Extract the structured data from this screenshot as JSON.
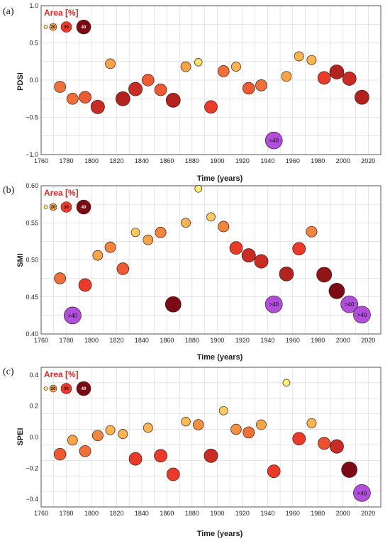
{
  "chart_data": [
    {
      "type": "scatter",
      "panel_label": "(a)",
      "xlabel": "Time (years)",
      "ylabel": "PDSI",
      "xlim": [
        1760,
        2030
      ],
      "ylim": [
        -1.0,
        1.0
      ],
      "xticks": [
        1760,
        1780,
        1800,
        1820,
        1840,
        1860,
        1880,
        1900,
        1920,
        1940,
        1960,
        1980,
        2000,
        2020
      ],
      "yticks": [
        -1.0,
        -0.5,
        0.0,
        0.5,
        1.0
      ],
      "ytick_labels": [
        "−1.0",
        "−0.5",
        "0.0",
        "0.5",
        "1.0"
      ],
      "grid": true,
      "legend": {
        "title": "Area [%]",
        "position": "top-left",
        "labels": [
          "10",
          "20",
          "30",
          "40"
        ]
      },
      "points": [
        {
          "x": 1775,
          "y": -0.09,
          "area": 25
        },
        {
          "x": 1785,
          "y": -0.25,
          "area": 25
        },
        {
          "x": 1795,
          "y": -0.23,
          "area": 27
        },
        {
          "x": 1805,
          "y": -0.36,
          "area": 33
        },
        {
          "x": 1815,
          "y": 0.22,
          "area": 20
        },
        {
          "x": 1825,
          "y": -0.25,
          "area": 35
        },
        {
          "x": 1835,
          "y": -0.12,
          "area": 33
        },
        {
          "x": 1845,
          "y": 0.0,
          "area": 27
        },
        {
          "x": 1855,
          "y": -0.13,
          "area": 27
        },
        {
          "x": 1865,
          "y": -0.27,
          "area": 35
        },
        {
          "x": 1875,
          "y": 0.18,
          "area": 20
        },
        {
          "x": 1885,
          "y": 0.24,
          "area": 12
        },
        {
          "x": 1895,
          "y": -0.36,
          "area": 30
        },
        {
          "x": 1905,
          "y": 0.12,
          "area": 25
        },
        {
          "x": 1915,
          "y": 0.18,
          "area": 18
        },
        {
          "x": 1925,
          "y": -0.11,
          "area": 27
        },
        {
          "x": 1935,
          "y": -0.07,
          "area": 25
        },
        {
          "x": 1945,
          "y": -0.81,
          "area": 50,
          "label": ">40"
        },
        {
          "x": 1955,
          "y": 0.05,
          "area": 20
        },
        {
          "x": 1965,
          "y": 0.32,
          "area": 18
        },
        {
          "x": 1975,
          "y": 0.27,
          "area": 18
        },
        {
          "x": 1985,
          "y": 0.03,
          "area": 30
        },
        {
          "x": 1995,
          "y": 0.11,
          "area": 35
        },
        {
          "x": 2005,
          "y": 0.02,
          "area": 33
        },
        {
          "x": 2015,
          "y": -0.23,
          "area": 35
        }
      ]
    },
    {
      "type": "scatter",
      "panel_label": "(b)",
      "xlabel": "Time (years)",
      "ylabel": "SMI",
      "xlim": [
        1760,
        2030
      ],
      "ylim": [
        0.4,
        0.6
      ],
      "xticks": [
        1760,
        1780,
        1800,
        1820,
        1840,
        1860,
        1880,
        1900,
        1920,
        1940,
        1960,
        1980,
        2000,
        2020
      ],
      "yticks": [
        0.4,
        0.45,
        0.5,
        0.55,
        0.6
      ],
      "ytick_labels": [
        "0.40",
        "0.45",
        "0.50",
        "0.55",
        "0.60"
      ],
      "grid": true,
      "legend": {
        "title": "Area [%]",
        "position": "top-left",
        "labels": [
          "10",
          "20",
          "30",
          "40"
        ]
      },
      "points": [
        {
          "x": 1775,
          "y": 0.475,
          "area": 25
        },
        {
          "x": 1785,
          "y": 0.425,
          "area": 50,
          "label": ">40"
        },
        {
          "x": 1795,
          "y": 0.466,
          "area": 30
        },
        {
          "x": 1805,
          "y": 0.506,
          "area": 20
        },
        {
          "x": 1815,
          "y": 0.517,
          "area": 23
        },
        {
          "x": 1825,
          "y": 0.488,
          "area": 27
        },
        {
          "x": 1835,
          "y": 0.537,
          "area": 15
        },
        {
          "x": 1845,
          "y": 0.527,
          "area": 20
        },
        {
          "x": 1855,
          "y": 0.537,
          "area": 23
        },
        {
          "x": 1865,
          "y": 0.44,
          "area": 40
        },
        {
          "x": 1875,
          "y": 0.55,
          "area": 18
        },
        {
          "x": 1885,
          "y": 0.596,
          "area": 10
        },
        {
          "x": 1895,
          "y": 0.558,
          "area": 15
        },
        {
          "x": 1905,
          "y": 0.545,
          "area": 23
        },
        {
          "x": 1915,
          "y": 0.516,
          "area": 30
        },
        {
          "x": 1925,
          "y": 0.506,
          "area": 33
        },
        {
          "x": 1935,
          "y": 0.498,
          "area": 33
        },
        {
          "x": 1945,
          "y": 0.44,
          "area": 50,
          "label": ">40"
        },
        {
          "x": 1955,
          "y": 0.481,
          "area": 35
        },
        {
          "x": 1965,
          "y": 0.515,
          "area": 30
        },
        {
          "x": 1975,
          "y": 0.538,
          "area": 23
        },
        {
          "x": 1985,
          "y": 0.48,
          "area": 38
        },
        {
          "x": 1995,
          "y": 0.458,
          "area": 40
        },
        {
          "x": 2005,
          "y": 0.44,
          "area": 50,
          "label": ">40"
        },
        {
          "x": 2015,
          "y": 0.426,
          "area": 50,
          "label": ">40"
        }
      ]
    },
    {
      "type": "scatter",
      "panel_label": "(c)",
      "xlabel": "Time (years)",
      "ylabel": "SPEI",
      "xlim": [
        1760,
        2030
      ],
      "ylim": [
        -0.45,
        0.45
      ],
      "xticks": [
        1760,
        1780,
        1800,
        1820,
        1840,
        1860,
        1880,
        1900,
        1920,
        1940,
        1960,
        1980,
        2000,
        2020
      ],
      "yticks": [
        -0.4,
        -0.2,
        0.0,
        0.2,
        0.4
      ],
      "ytick_labels": [
        "−0.4",
        "−0.2",
        "0.0",
        "0.2",
        "0.4"
      ],
      "grid": true,
      "legend": {
        "title": "Area [%]",
        "position": "top-left",
        "labels": [
          "10",
          "20",
          "30",
          "40"
        ]
      },
      "points": [
        {
          "x": 1775,
          "y": -0.11,
          "area": 27
        },
        {
          "x": 1785,
          "y": -0.02,
          "area": 20
        },
        {
          "x": 1795,
          "y": -0.09,
          "area": 25
        },
        {
          "x": 1805,
          "y": 0.01,
          "area": 23
        },
        {
          "x": 1815,
          "y": 0.045,
          "area": 18
        },
        {
          "x": 1825,
          "y": 0.02,
          "area": 18
        },
        {
          "x": 1835,
          "y": -0.14,
          "area": 30
        },
        {
          "x": 1845,
          "y": 0.06,
          "area": 18
        },
        {
          "x": 1855,
          "y": -0.12,
          "area": 30
        },
        {
          "x": 1865,
          "y": -0.24,
          "area": 30
        },
        {
          "x": 1875,
          "y": 0.1,
          "area": 17
        },
        {
          "x": 1885,
          "y": 0.08,
          "area": 22
        },
        {
          "x": 1895,
          "y": -0.12,
          "area": 33
        },
        {
          "x": 1905,
          "y": 0.17,
          "area": 15
        },
        {
          "x": 1915,
          "y": 0.05,
          "area": 22
        },
        {
          "x": 1925,
          "y": 0.03,
          "area": 25
        },
        {
          "x": 1935,
          "y": 0.08,
          "area": 20
        },
        {
          "x": 1945,
          "y": -0.22,
          "area": 30
        },
        {
          "x": 1955,
          "y": 0.35,
          "area": 10
        },
        {
          "x": 1965,
          "y": -0.01,
          "area": 30
        },
        {
          "x": 1975,
          "y": 0.09,
          "area": 18
        },
        {
          "x": 1985,
          "y": -0.04,
          "area": 28
        },
        {
          "x": 1995,
          "y": -0.06,
          "area": 33
        },
        {
          "x": 2005,
          "y": -0.21,
          "area": 40
        },
        {
          "x": 2015,
          "y": -0.36,
          "area": 50,
          "label": ">40"
        }
      ]
    }
  ],
  "colors": {
    "area_10": "#fff176",
    "area_20": "#f5a547",
    "area_30": "#ea3b2a",
    "area_40": "#7a0a13",
    "area_gt40": "#b14fdc",
    "legend_title": "#e02a2a",
    "grid": "#cccccc"
  }
}
